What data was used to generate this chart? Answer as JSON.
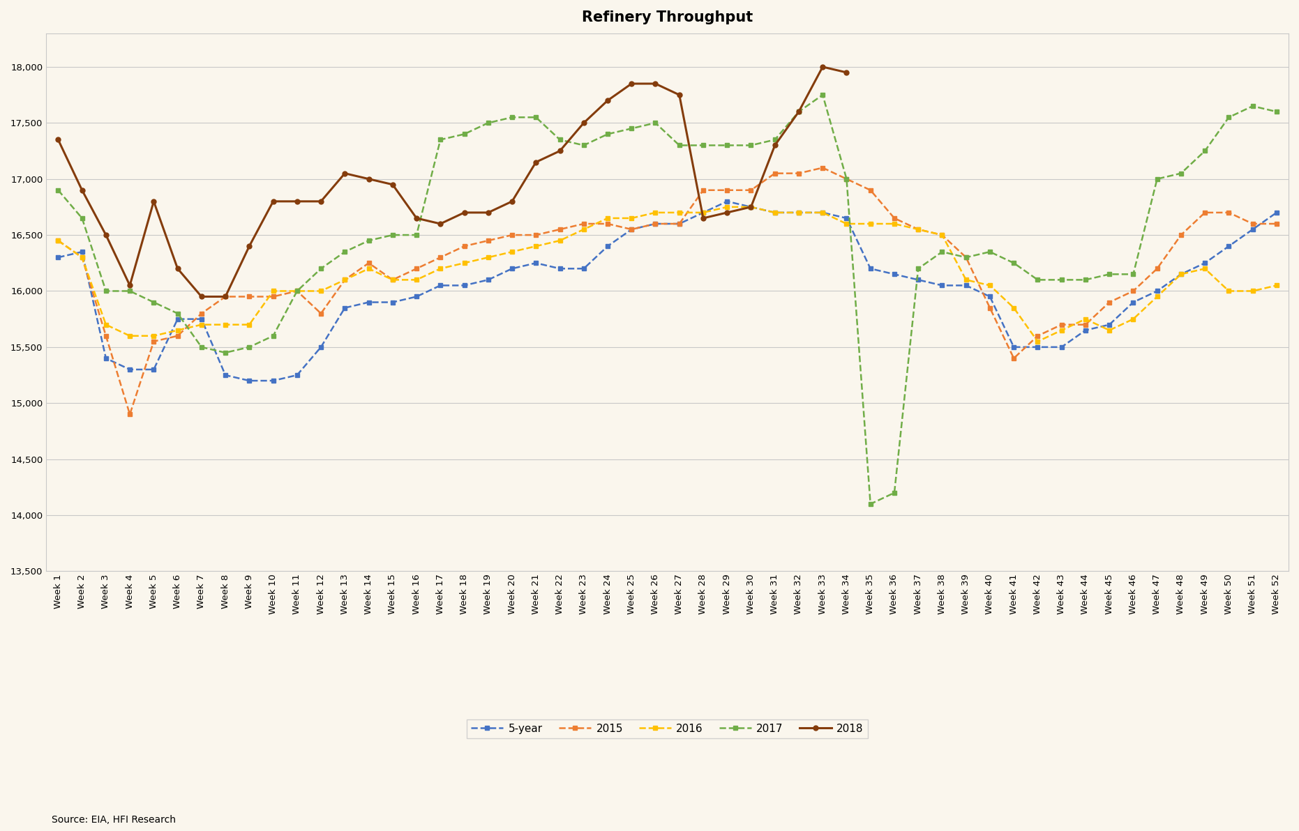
{
  "title": "Refinery Throughput",
  "source_text": "Source: EIA, HFI Research",
  "background_color": "#faf6ed",
  "plot_bg_color": "#faf6ed",
  "ylim": [
    13500,
    18300
  ],
  "yticks": [
    13500,
    14000,
    14500,
    15000,
    15500,
    16000,
    16500,
    17000,
    17500,
    18000
  ],
  "weeks": [
    "Week 1",
    "Week 2",
    "Week 3",
    "Week 4",
    "Week 5",
    "Week 6",
    "Week 7",
    "Week 8",
    "Week 9",
    "Week 10",
    "Week 11",
    "Week 12",
    "Week 13",
    "Week 14",
    "Week 15",
    "Week 16",
    "Week 17",
    "Week 18",
    "Week 19",
    "Week 20",
    "Week 21",
    "Week 22",
    "Week 23",
    "Week 24",
    "Week 25",
    "Week 26",
    "Week 27",
    "Week 28",
    "Week 29",
    "Week 30",
    "Week 31",
    "Week 32",
    "Week 33",
    "Week 34",
    "Week 35",
    "Week 36",
    "Week 37",
    "Week 38",
    "Week 39",
    "Week 40",
    "Week 41",
    "Week 42",
    "Week 43",
    "Week 44",
    "Week 45",
    "Week 46",
    "Week 47",
    "Week 48",
    "Week 49",
    "Week 50",
    "Week 51",
    "Week 52"
  ],
  "series": {
    "5-year": {
      "color": "#4472C4",
      "linestyle": "--",
      "marker": "s",
      "markersize": 4,
      "linewidth": 1.8,
      "values": [
        16300,
        16350,
        15400,
        15300,
        15300,
        15750,
        15750,
        15250,
        15200,
        15200,
        15250,
        15500,
        15850,
        15900,
        15900,
        15950,
        16050,
        16050,
        16100,
        16200,
        16250,
        16200,
        16200,
        16400,
        16550,
        16600,
        16600,
        16700,
        16800,
        16750,
        16700,
        16700,
        16700,
        16650,
        16200,
        16150,
        16100,
        16050,
        16050,
        15950,
        15500,
        15500,
        15500,
        15650,
        15700,
        15900,
        16000,
        16150,
        16250,
        16400,
        16550,
        16700
      ]
    },
    "2015": {
      "color": "#ED7D31",
      "linestyle": "--",
      "marker": "s",
      "markersize": 4,
      "linewidth": 1.8,
      "values": [
        16450,
        16300,
        15600,
        14900,
        15550,
        15600,
        15800,
        15950,
        15950,
        15950,
        16000,
        15800,
        16100,
        16250,
        16100,
        16200,
        16300,
        16400,
        16450,
        16500,
        16500,
        16550,
        16600,
        16600,
        16550,
        16600,
        16600,
        16900,
        16900,
        16900,
        17050,
        17050,
        17100,
        17000,
        16900,
        16650,
        16550,
        16500,
        16300,
        15850,
        15400,
        15600,
        15700,
        15700,
        15900,
        16000,
        16200,
        16500,
        16700,
        16700,
        16600,
        16600
      ]
    },
    "2016": {
      "color": "#FFC000",
      "linestyle": "--",
      "marker": "s",
      "markersize": 4,
      "linewidth": 1.8,
      "values": [
        16450,
        16300,
        15700,
        15600,
        15600,
        15650,
        15700,
        15700,
        15700,
        16000,
        16000,
        16000,
        16100,
        16200,
        16100,
        16100,
        16200,
        16250,
        16300,
        16350,
        16400,
        16450,
        16550,
        16650,
        16650,
        16700,
        16700,
        16700,
        16750,
        16750,
        16700,
        16700,
        16700,
        16600,
        16600,
        16600,
        16550,
        16500,
        16100,
        16050,
        15850,
        15550,
        15650,
        15750,
        15650,
        15750,
        15950,
        16150,
        16200,
        16000,
        16000,
        16050
      ]
    },
    "2017": {
      "color": "#70AD47",
      "linestyle": "--",
      "marker": "s",
      "markersize": 4,
      "linewidth": 1.8,
      "values": [
        16900,
        16650,
        16000,
        16000,
        15900,
        15800,
        15500,
        15450,
        15500,
        15600,
        16000,
        16200,
        16350,
        16450,
        16500,
        16500,
        17350,
        17400,
        17500,
        17550,
        17550,
        17350,
        17300,
        17400,
        17450,
        17500,
        17300,
        17300,
        17300,
        17300,
        17350,
        17600,
        17750,
        17000,
        14100,
        14200,
        16200,
        16350,
        16300,
        16350,
        16250,
        16100,
        16100,
        16100,
        16150,
        16150,
        17000,
        17050,
        17250,
        17550,
        17650,
        17600
      ]
    },
    "2018": {
      "color": "#843C0C",
      "linestyle": "-",
      "marker": "o",
      "markersize": 5,
      "linewidth": 2.2,
      "values": [
        17350,
        16900,
        16500,
        16050,
        16800,
        16200,
        15950,
        15950,
        16400,
        16800,
        16800,
        16800,
        17050,
        17000,
        16950,
        16650,
        16600,
        16700,
        16700,
        16800,
        17150,
        17250,
        17500,
        17700,
        17850,
        17850,
        17750,
        16650,
        16700,
        16750,
        17300,
        17600,
        18000,
        17950,
        null,
        null,
        null,
        null,
        null,
        null,
        null,
        null,
        null,
        null,
        null,
        null,
        null,
        null,
        null,
        null,
        null,
        null
      ]
    }
  },
  "title_fontsize": 15,
  "tick_fontsize": 9.5,
  "source_fontsize": 10
}
